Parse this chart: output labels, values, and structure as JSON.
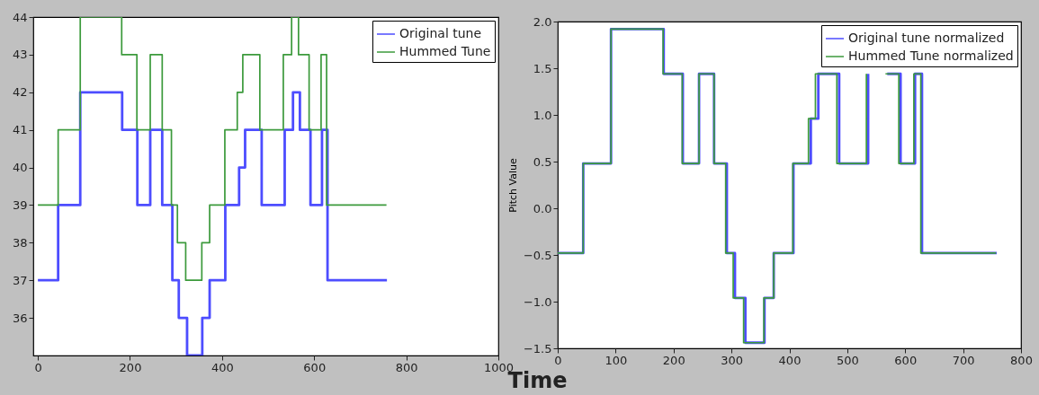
{
  "chart_data": [
    {
      "type": "step",
      "xlabel": "Time",
      "xlim": [
        -10,
        1000
      ],
      "xticks": [
        0,
        200,
        400,
        600,
        800,
        1000
      ],
      "ylim": [
        35,
        44
      ],
      "yticks": [
        36,
        37,
        38,
        39,
        40,
        41,
        42,
        43,
        44
      ],
      "legend": "top right",
      "grid": false,
      "series": [
        {
          "name": "Original tune",
          "color": "#4d4dff",
          "x": [
            0,
            44,
            92,
            183,
            216,
            244,
            270,
            292,
            306,
            324,
            357,
            373,
            407,
            437,
            450,
            486,
            536,
            554,
            569,
            592,
            617,
            629,
            758
          ],
          "values": [
            37,
            39,
            42,
            41,
            39,
            41,
            39,
            37,
            36,
            35,
            36,
            37,
            39,
            40,
            41,
            39,
            41,
            42,
            41,
            39,
            41,
            37,
            37
          ]
        },
        {
          "name": "Hummed Tune",
          "color": "#3c9a3c",
          "x": [
            0,
            44,
            92,
            182,
            215,
            244,
            270,
            290,
            303,
            321,
            356,
            373,
            406,
            433,
            445,
            482,
            533,
            551,
            566,
            589,
            615,
            627,
            757
          ],
          "values": [
            39,
            41,
            44,
            43,
            41,
            43,
            41,
            39,
            38,
            37,
            38,
            39,
            41,
            42,
            43,
            41,
            43,
            44,
            43,
            41,
            43,
            39,
            39
          ]
        }
      ]
    },
    {
      "type": "step",
      "ylabel": "Pitch Value",
      "xlim": [
        0,
        800
      ],
      "xticks": [
        0,
        100,
        200,
        300,
        400,
        500,
        600,
        700,
        800
      ],
      "ylim": [
        -1.5,
        2.0
      ],
      "yticks": [
        {
          "value": -1.5,
          "label": "−1.5"
        },
        {
          "value": -1.0,
          "label": "−1.0"
        },
        {
          "value": -0.5,
          "label": "−0.5"
        },
        {
          "value": 0,
          "label": "0.0"
        },
        {
          "value": 0.5,
          "label": "0.5"
        },
        {
          "value": 1.0,
          "label": "1.0"
        },
        {
          "value": 1.5,
          "label": "1.5"
        },
        {
          "value": 2.0,
          "label": "2.0"
        }
      ],
      "legend": "top right",
      "grid": false,
      "series": [
        {
          "name": "Original tune normalized",
          "color": "#4d4dff",
          "x": [
            0,
            44,
            92,
            183,
            216,
            244,
            270,
            292,
            306,
            324,
            357,
            373,
            407,
            437,
            450,
            486,
            536,
            554,
            569,
            592,
            617,
            629,
            758
          ],
          "values": [
            -0.48,
            0.48,
            1.92,
            1.44,
            0.48,
            1.44,
            0.48,
            -0.48,
            -0.96,
            -1.44,
            -0.96,
            -0.48,
            0.48,
            0.96,
            1.44,
            0.48,
            1.44,
            null,
            1.44,
            0.48,
            1.44,
            -0.48,
            -0.48
          ]
        },
        {
          "name": "Hummed Tune normalized",
          "color": "#3c9a3c",
          "x": [
            0,
            44,
            92,
            182,
            215,
            244,
            270,
            290,
            303,
            321,
            356,
            373,
            406,
            433,
            445,
            482,
            533,
            551,
            566,
            589,
            615,
            627,
            757
          ],
          "values": [
            -0.48,
            0.48,
            1.92,
            1.44,
            0.48,
            1.44,
            0.48,
            -0.48,
            -0.96,
            -1.44,
            -0.96,
            -0.48,
            0.48,
            0.96,
            1.44,
            0.48,
            1.44,
            null,
            1.44,
            0.48,
            1.44,
            -0.48,
            -0.48
          ]
        }
      ]
    }
  ]
}
